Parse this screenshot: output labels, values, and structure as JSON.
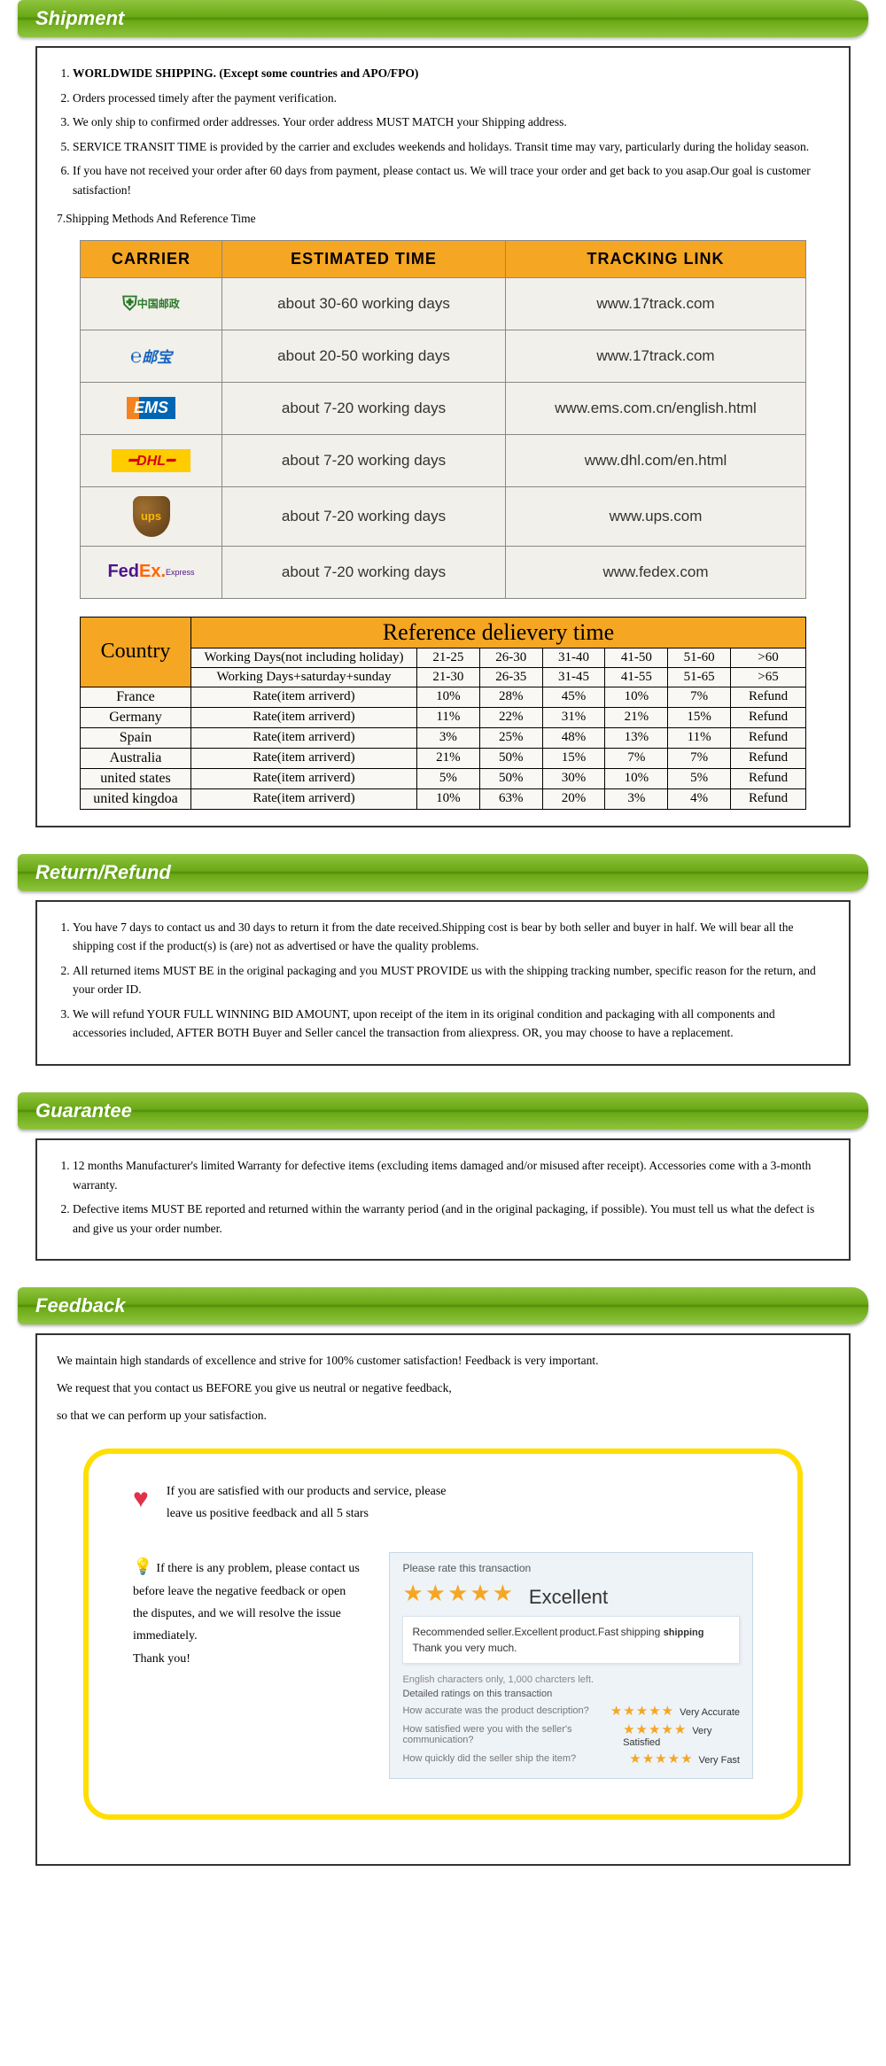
{
  "sections": {
    "shipment": {
      "title": "Shipment",
      "items": [
        "WORLDWIDE SHIPPING. (Except some countries and APO/FPO)",
        "Orders processed timely after the payment verification.",
        "We only ship to confirmed order addresses. Your order address MUST MATCH your Shipping address.",
        "SERVICE TRANSIT TIME is provided by the carrier and excludes weekends and holidays. Transit time may vary, particularly during the holiday season.",
        "If you have not received your order after 60 days from payment, please contact us. We will trace your order and get back to you asap.Our goal is customer satisfaction!"
      ],
      "item7": "Shipping Methods And Reference Time"
    },
    "return": {
      "title": "Return/Refund",
      "items": [
        "You have 7 days to contact us and 30 days to return it from the date received.Shipping cost is bear by both seller and buyer in half. We will bear all the shipping cost if the product(s) is (are) not as advertised or have the quality problems.",
        "All returned items MUST BE in the original packaging and you MUST PROVIDE us with the shipping tracking number, specific reason for the return, and your order ID.",
        "We will refund YOUR FULL WINNING BID AMOUNT, upon receipt of the item in its original condition and packaging with all components and accessories included, AFTER BOTH Buyer and Seller cancel the transaction from aliexpress. OR, you may choose to have a replacement."
      ]
    },
    "guarantee": {
      "title": "Guarantee",
      "items": [
        "12 months Manufacturer's limited Warranty for defective items (excluding items damaged and/or misused after receipt). Accessories come with a 3-month warranty.",
        "Defective items MUST BE reported and returned within the warranty period (and in the original packaging, if possible). You must tell us what the defect is and give us your order number."
      ]
    },
    "feedback": {
      "title": "Feedback",
      "para1": "We maintain high standards of excellence and strive for 100% customer satisfaction! Feedback is very important.",
      "para2": "We request that you contact us BEFORE you give us neutral or negative feedback,",
      "para3": "so that we can perform up your satisfaction.",
      "satisfied_line1": "If you are satisfied with our products and service, please",
      "satisfied_line2": "leave us positive feedback and all 5 stars",
      "problem_text": "If there is any problem, please contact us before leave the negative feedback or open the disputes, and we will resolve the issue immediately.",
      "thank_you": "Thank you!",
      "rate_box": {
        "header": "Please rate this transaction",
        "rating_text": "Excellent",
        "comment1": "Recommended seller.Excellent product.Fast shipping",
        "comment2": "Thank you very much.",
        "chars_left": "English characters only, 1,000 charcters left.",
        "detail_header": "Detailed ratings on this transaction",
        "q1": "How accurate was the product description?",
        "a1": "Very Accurate",
        "q2": "How satisfied were you with the seller's communication?",
        "a2": "Very Satisfied",
        "q3": "How quickly did the seller ship the item?",
        "a3": "Very Fast"
      }
    }
  },
  "carrier_table": {
    "headers": [
      "CARRIER",
      "ESTIMATED TIME",
      "TRACKING LINK"
    ],
    "rows": [
      {
        "carrier": "chinapost",
        "label": "中国邮政",
        "time": "about 30-60 working days",
        "link": "www.17track.com"
      },
      {
        "carrier": "epacket",
        "label": "邮宝",
        "time": "about 20-50 working days",
        "link": "www.17track.com"
      },
      {
        "carrier": "ems",
        "label": "EMS",
        "time": "about 7-20 working days",
        "link": "www.ems.com.cn/english.html"
      },
      {
        "carrier": "dhl",
        "label": "DHL",
        "time": "about 7-20 working days",
        "link": "www.dhl.com/en.html"
      },
      {
        "carrier": "ups",
        "label": "ups",
        "time": "about 7-20 working days",
        "link": "www.ups.com"
      },
      {
        "carrier": "fedex",
        "label": "FedEx",
        "time": "about 7-20 working days",
        "link": "www.fedex.com"
      }
    ]
  },
  "delivery_table": {
    "title": "Reference delievery time",
    "country_header": "Country",
    "row1_label": "Working Days(not including holiday)",
    "row1_cols": [
      "21-25",
      "26-30",
      "31-40",
      "41-50",
      "51-60",
      ">60"
    ],
    "row2_label": "Working Days+saturday+sunday",
    "row2_cols": [
      "21-30",
      "26-35",
      "31-45",
      "41-55",
      "51-65",
      ">65"
    ],
    "rate_label": "Rate(item arriverd)",
    "countries": [
      {
        "name": "France",
        "rates": [
          "10%",
          "28%",
          "45%",
          "10%",
          "7%",
          "Refund"
        ]
      },
      {
        "name": "Germany",
        "rates": [
          "11%",
          "22%",
          "31%",
          "21%",
          "15%",
          "Refund"
        ]
      },
      {
        "name": "Spain",
        "rates": [
          "3%",
          "25%",
          "48%",
          "13%",
          "11%",
          "Refund"
        ]
      },
      {
        "name": "Australia",
        "rates": [
          "21%",
          "50%",
          "15%",
          "7%",
          "7%",
          "Refund"
        ]
      },
      {
        "name": "united states",
        "rates": [
          "5%",
          "50%",
          "30%",
          "10%",
          "5%",
          "Refund"
        ]
      },
      {
        "name": "united kingdoa",
        "rates": [
          "10%",
          "63%",
          "20%",
          "3%",
          "4%",
          "Refund"
        ]
      }
    ]
  },
  "colors": {
    "header_green_top": "#8fc43f",
    "header_green_mid": "#4f8c0e",
    "orange": "#f5a623",
    "yellow_border": "#ffde00",
    "star": "#f5a623",
    "heart": "#e0324a"
  }
}
